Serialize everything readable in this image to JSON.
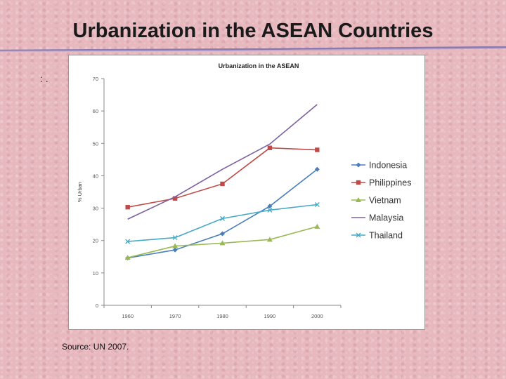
{
  "slide": {
    "title": "Urbanization in the ASEAN Countries",
    "bullet": ": .",
    "source": "Source: UN 2007."
  },
  "chart_data": {
    "type": "line",
    "title": "Urbanization in the ASEAN",
    "xlabel": "",
    "ylabel": "% Urban",
    "x": [
      "1960",
      "1970",
      "1980",
      "1990",
      "2000"
    ],
    "ylim": [
      0,
      70
    ],
    "yticks": [
      0,
      10,
      20,
      30,
      40,
      50,
      60,
      70
    ],
    "grid": false,
    "legend": "right",
    "series": [
      {
        "name": "Indonesia",
        "color": "#4a7ebb",
        "marker": "diamond",
        "values": [
          14.6,
          17.1,
          22.1,
          30.6,
          42.0
        ]
      },
      {
        "name": "Philippines",
        "color": "#be4b48",
        "marker": "square",
        "values": [
          30.3,
          33.0,
          37.5,
          48.6,
          48.0
        ]
      },
      {
        "name": "Vietnam",
        "color": "#98b954",
        "marker": "triangle",
        "values": [
          14.7,
          18.3,
          19.2,
          20.3,
          24.3
        ]
      },
      {
        "name": "Malaysia",
        "color": "#7d60a0",
        "marker": "none",
        "values": [
          26.6,
          33.5,
          42.0,
          49.8,
          62.0
        ]
      },
      {
        "name": "Thailand",
        "color": "#46aac5",
        "marker": "x",
        "values": [
          19.7,
          20.9,
          26.8,
          29.4,
          31.1
        ]
      }
    ]
  }
}
